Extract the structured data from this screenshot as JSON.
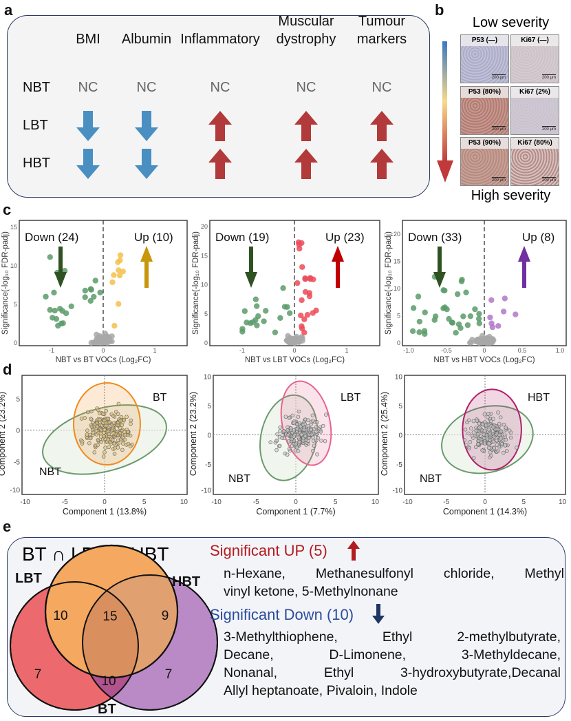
{
  "panel_labels": {
    "a": "a",
    "b": "b",
    "c": "c",
    "d": "d",
    "e": "e"
  },
  "panel_a": {
    "columns": [
      "BMI",
      "Albumin",
      "Inflammatory",
      "Muscular dystrophy",
      "Tumour markers"
    ],
    "columns_lines": [
      [
        "BMI"
      ],
      [
        "Albumin"
      ],
      [
        "Inflammatory"
      ],
      [
        "Muscular",
        "dystrophy"
      ],
      [
        "Tumour",
        "markers"
      ]
    ],
    "rows": [
      {
        "label": "NBT",
        "cells": [
          "NC",
          "NC",
          "NC",
          "NC",
          "NC"
        ]
      },
      {
        "label": "LBT",
        "cells": [
          "down",
          "down",
          "up",
          "up",
          "up"
        ]
      },
      {
        "label": "HBT",
        "cells": [
          "down",
          "down",
          "up",
          "up",
          "up"
        ]
      }
    ],
    "colors": {
      "down": "#4a8fc1",
      "up": "#b23a3a",
      "nc": "#666666"
    }
  },
  "panel_b": {
    "top_label": "Low severity",
    "bottom_label": "High severity",
    "tiles": [
      [
        "P53 (—)",
        "Ki67 (—)"
      ],
      [
        "P53 (80%)",
        "Ki67 (2%)"
      ],
      [
        "P53 (90%)",
        "Ki67 (80%)"
      ]
    ],
    "scale_bar": "200 μm",
    "gradient": [
      "#3b78c0",
      "#f8d98a",
      "#c0393b"
    ]
  },
  "panel_c": [
    {
      "down": "Down (24)",
      "up": "Up (10)",
      "xlabel": "NBT vs BT VOCs (Log₂FC)",
      "ylabel": "Significance(-log₁₀ FDR-padj)",
      "xticks": [
        "-1",
        "0",
        "1"
      ],
      "yticks": [
        "0",
        "5",
        "10",
        "15"
      ],
      "up_color": "#f5c04a",
      "arrow_up_color": "#c8960a",
      "down_color": "#5b9b6a",
      "arrow_down_color": "#2f5222"
    },
    {
      "down": "Down (19)",
      "up": "Up (23)",
      "xlabel": "NBT vs LBT VOCs (Log₂FC)",
      "ylabel": "Significance(-log₁₀ FDR-padj)",
      "xticks": [
        "-1",
        "0",
        "1"
      ],
      "yticks": [
        "0",
        "5",
        "10",
        "15",
        "20"
      ],
      "up_color": "#ec4b58",
      "arrow_up_color": "#c00000",
      "down_color": "#5b9b6a",
      "arrow_down_color": "#2f5222"
    },
    {
      "down": "Down (33)",
      "up": "Up (8)",
      "xlabel": "NBT vs HBT VOCs (Log₂FC)",
      "ylabel": "Significance(-log₁₀ FDR-padj)",
      "xticks": [
        "-1.0",
        "-0.5",
        "0",
        "0.5",
        "1.0"
      ],
      "yticks": [
        "0",
        "5",
        "10",
        "15",
        "20"
      ],
      "up_color": "#b278c8",
      "arrow_up_color": "#7030a0",
      "down_color": "#5b9b6a",
      "arrow_down_color": "#2f5222"
    }
  ],
  "panel_d": [
    {
      "group": "BT",
      "ref": "NBT",
      "xlabel": "Component 1 (13.8%)",
      "ylabel": "Component 2 (23.2%)",
      "xticks": [
        "-10",
        "-5",
        "0",
        "5",
        "10"
      ],
      "yticks": [
        "-10",
        "-5",
        "0",
        "5"
      ],
      "color": "#f08a1c"
    },
    {
      "group": "LBT",
      "ref": "NBT",
      "xlabel": "Component 1 (7.7%)",
      "ylabel": "Component 2 (23.2%)",
      "xticks": [
        "-10",
        "-5",
        "0",
        "5",
        "10"
      ],
      "yticks": [
        "-10",
        "-5",
        "0",
        "5",
        "10"
      ],
      "color": "#e8638e"
    },
    {
      "group": "HBT",
      "ref": "NBT",
      "xlabel": "Component 1 (14.3%)",
      "ylabel": "Component 2 (25.4%)",
      "xticks": [
        "-10",
        "-5",
        "0",
        "5",
        "10"
      ],
      "yticks": [
        "-10",
        "-5",
        "0",
        "5",
        "10"
      ],
      "color": "#b0206a"
    }
  ],
  "panel_e": {
    "title": "BT ∩ LBT ∩ HBT",
    "venn": {
      "labels": {
        "LBT": "LBT",
        "HBT": "HBT",
        "BT": "BT"
      },
      "counts": {
        "LBT_BT": "10",
        "all": "15",
        "HBT_BT": "9",
        "LBT_only": "7",
        "LBT_HBT": "10",
        "HBT_only": "7"
      }
    },
    "up_title": "Significant UP (5)",
    "up_lines": [
      "n-Hexane, Methanesulfonyl chloride, Methyl",
      "vinyl ketone, 5-Methylnonane"
    ],
    "down_title": "Significant Down (10)",
    "down_lines": [
      "3-Methylthiophene, Ethyl 2-methylbutyrate,",
      "Decane, D-Limonene, 3-Methyldecane,",
      "Nonanal, Ethyl 3-hydroxybutyrate,Decanal",
      "Allyl heptanoate, Pivaloin, Indole"
    ],
    "colors": {
      "up": "#b01c22",
      "down": "#2b4c9b",
      "up_arrow": "#b01c22",
      "down_arrow": "#1f3564"
    }
  }
}
